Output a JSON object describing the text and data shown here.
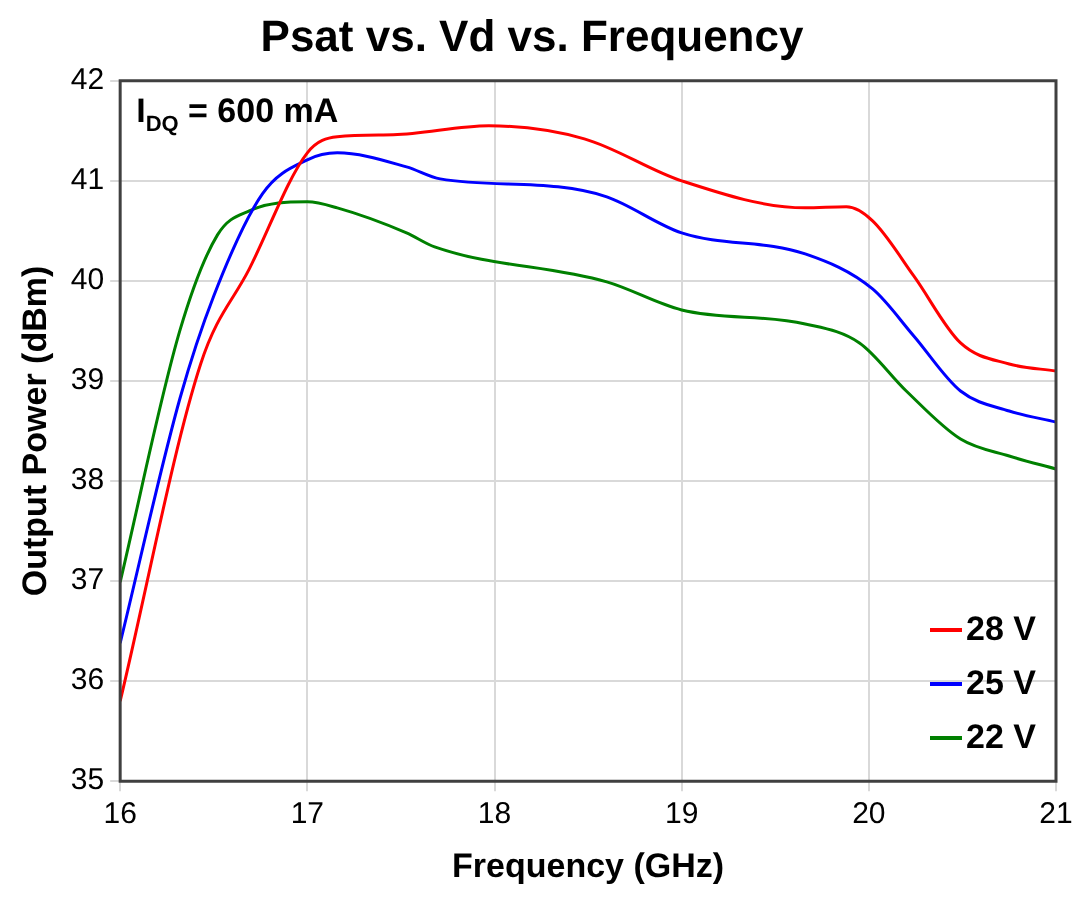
{
  "chart_data": {
    "type": "line",
    "title": "Psat vs. Vd vs. Frequency",
    "xlabel": "Frequency (GHz)",
    "ylabel": "Output Power (dBm)",
    "annotations": [
      "I$_{DQ}$ = 600 mA"
    ],
    "xlim": [
      16,
      21
    ],
    "xticks": [
      16,
      17,
      18,
      19,
      20,
      21
    ],
    "ylim": [
      35,
      42
    ],
    "yticks": [
      35,
      36,
      37,
      38,
      39,
      40,
      41,
      42
    ],
    "grid": true,
    "legend": "bottom right",
    "marker": "none",
    "line_style": "solid",
    "series": [
      {
        "name": "28 V",
        "color": "#ff0000",
        "x": [
          16,
          16.43,
          16.69,
          17.0,
          17.16,
          17.46,
          17.97,
          18.48,
          19.0,
          19.66,
          19.88,
          20.02,
          20.24,
          20.49,
          20.75,
          21
        ],
        "values": [
          35.8,
          39.17,
          40.12,
          41.28,
          41.44,
          41.46,
          41.55,
          41.42,
          41.0,
          40.73,
          40.74,
          40.6,
          40.05,
          39.38,
          39.17,
          39.1
        ]
      },
      {
        "name": "25 V",
        "color": "#0000ff",
        "x": [
          16,
          16.32,
          16.5,
          16.76,
          17.0,
          17.16,
          17.53,
          17.71,
          18.34,
          18.6,
          19.0,
          19.66,
          20.02,
          20.24,
          20.49,
          20.75,
          21
        ],
        "values": [
          36.38,
          38.83,
          39.85,
          40.87,
          41.21,
          41.28,
          41.14,
          41.02,
          40.94,
          40.84,
          40.48,
          40.27,
          39.92,
          39.45,
          38.9,
          38.7,
          38.59
        ]
      },
      {
        "name": "22 V",
        "color": "#008000",
        "x": [
          16,
          16.32,
          16.52,
          16.69,
          17.0,
          17.16,
          17.53,
          17.68,
          18.6,
          19.0,
          19.66,
          19.95,
          20.2,
          20.49,
          20.75,
          21
        ],
        "values": [
          36.99,
          39.51,
          40.46,
          40.7,
          40.79,
          40.73,
          40.48,
          40.34,
          39.99,
          39.71,
          39.57,
          39.38,
          38.9,
          38.42,
          38.25,
          38.12
        ]
      }
    ]
  }
}
